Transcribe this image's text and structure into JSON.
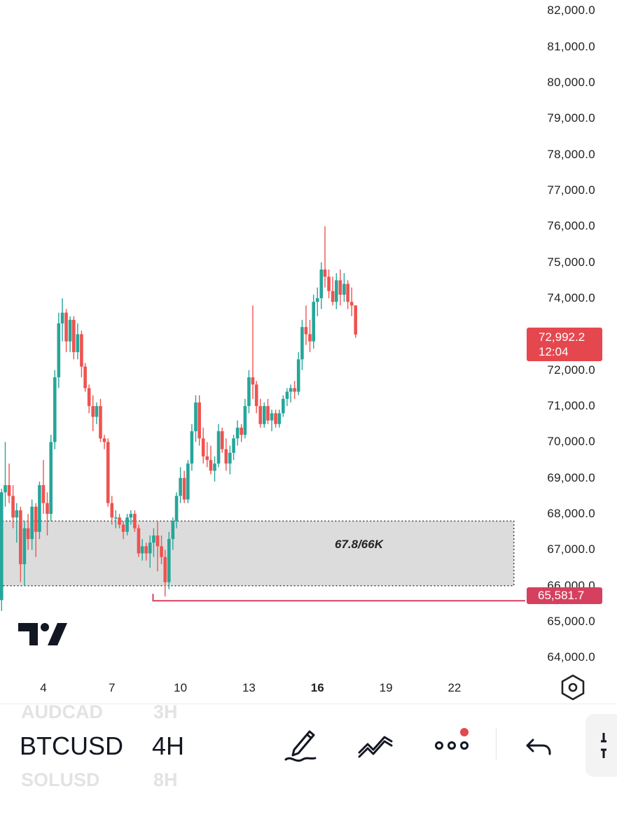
{
  "chart_data": {
    "type": "candlestick",
    "symbol": "BTCUSD",
    "timeframe": "4H",
    "y_axis": {
      "ticks": [
        "82,000.0",
        "81,000.0",
        "80,000.0",
        "79,000.0",
        "78,000.0",
        "77,000.0",
        "76,000.0",
        "75,000.0",
        "74,000.0",
        "72,000.0",
        "71,000.0",
        "70,000.0",
        "69,000.0",
        "68,000.0",
        "67,000.0",
        "66,000.0",
        "65,000.0",
        "64,000.0"
      ],
      "range": [
        63600,
        82300
      ]
    },
    "x_axis": {
      "ticks": [
        "4",
        "7",
        "10",
        "13",
        "16",
        "19",
        "22"
      ],
      "highlight": "16",
      "day_range": [
        2.1,
        25.1
      ]
    },
    "current_price": "72,992.2",
    "countdown": "12:04",
    "current_price_value": 72992.2,
    "low_price": "65,581.7",
    "low_price_value": 65581.7,
    "low_line_start_day": 8.8,
    "zone": {
      "label": "67.8/66K",
      "top": 67800,
      "bottom": 66000,
      "start_day": 2.2,
      "end_day": 24.6
    },
    "ohlc": [
      [
        2.0,
        66100,
        66300,
        65400,
        65600
      ],
      [
        2.17,
        65600,
        68700,
        65300,
        68600
      ],
      [
        2.33,
        68600,
        70000,
        68200,
        68800
      ],
      [
        2.5,
        68800,
        69400,
        68300,
        68500
      ],
      [
        2.67,
        68500,
        68800,
        67600,
        67900
      ],
      [
        2.83,
        67900,
        68300,
        67200,
        68100
      ],
      [
        3.0,
        68100,
        68200,
        66100,
        66600
      ],
      [
        3.17,
        66600,
        67800,
        66000,
        67600
      ],
      [
        3.33,
        67600,
        68000,
        67000,
        67300
      ],
      [
        3.5,
        67300,
        68400,
        67000,
        68200
      ],
      [
        3.67,
        68200,
        68300,
        66800,
        67500
      ],
      [
        3.83,
        67500,
        68900,
        67300,
        68800
      ],
      [
        4.0,
        68800,
        69500,
        68000,
        68300
      ],
      [
        4.17,
        68300,
        68600,
        67400,
        68000
      ],
      [
        4.33,
        68000,
        70200,
        67800,
        70000
      ],
      [
        4.5,
        70000,
        72000,
        69800,
        71800
      ],
      [
        4.67,
        71800,
        73600,
        71500,
        73300
      ],
      [
        4.83,
        73300,
        74000,
        72800,
        73600
      ],
      [
        5.0,
        73600,
        73700,
        72500,
        72800
      ],
      [
        5.17,
        72800,
        73500,
        72500,
        73400
      ],
      [
        5.33,
        73400,
        73500,
        72300,
        72500
      ],
      [
        5.5,
        72500,
        73300,
        72300,
        73000
      ],
      [
        5.67,
        73000,
        73100,
        71800,
        72100
      ],
      [
        5.83,
        72100,
        72200,
        71400,
        71500
      ],
      [
        6.0,
        71500,
        71600,
        70800,
        71000
      ],
      [
        6.17,
        71000,
        71300,
        70300,
        70700
      ],
      [
        6.33,
        70700,
        71100,
        70500,
        71000
      ],
      [
        6.5,
        71000,
        71200,
        70000,
        70100
      ],
      [
        6.67,
        70100,
        70200,
        69800,
        70000
      ],
      [
        6.83,
        70000,
        70100,
        68200,
        68300
      ],
      [
        7.0,
        68300,
        68500,
        67700,
        67900
      ],
      [
        7.17,
        67900,
        68100,
        67600,
        67900
      ],
      [
        7.33,
        67900,
        68000,
        67600,
        67700
      ],
      [
        7.5,
        67700,
        67800,
        67300,
        67500
      ],
      [
        7.67,
        67500,
        68000,
        67400,
        67900
      ],
      [
        7.83,
        67900,
        68100,
        67700,
        68000
      ],
      [
        8.0,
        68000,
        68100,
        67500,
        67600
      ],
      [
        8.17,
        67600,
        67700,
        66800,
        66900
      ],
      [
        8.33,
        66900,
        67300,
        66700,
        67100
      ],
      [
        8.5,
        67100,
        67200,
        66700,
        66900
      ],
      [
        8.67,
        66900,
        67400,
        66500,
        67200
      ],
      [
        8.83,
        67200,
        67600,
        66800,
        67400
      ],
      [
        9.0,
        67400,
        67800,
        66400,
        67100
      ],
      [
        9.17,
        67100,
        67400,
        66600,
        66800
      ],
      [
        9.33,
        66800,
        67000,
        65700,
        66100
      ],
      [
        9.5,
        66100,
        67500,
        65900,
        67300
      ],
      [
        9.67,
        67300,
        67900,
        67000,
        67800
      ],
      [
        9.83,
        67800,
        68600,
        67600,
        68500
      ],
      [
        10.0,
        68500,
        69300,
        68300,
        69000
      ],
      [
        10.17,
        69000,
        69200,
        68300,
        68400
      ],
      [
        10.33,
        68400,
        69500,
        68300,
        69400
      ],
      [
        10.5,
        69400,
        70500,
        69200,
        70300
      ],
      [
        10.67,
        70300,
        71300,
        70000,
        71100
      ],
      [
        10.83,
        71100,
        71300,
        69900,
        70100
      ],
      [
        11.0,
        70100,
        70400,
        69400,
        69600
      ],
      [
        11.17,
        69600,
        70000,
        69300,
        69500
      ],
      [
        11.33,
        69500,
        69900,
        69100,
        69200
      ],
      [
        11.5,
        69200,
        69600,
        68900,
        69400
      ],
      [
        11.67,
        69400,
        70500,
        69300,
        70300
      ],
      [
        11.83,
        70300,
        70400,
        69700,
        69800
      ],
      [
        12.0,
        69800,
        70100,
        69200,
        69400
      ],
      [
        12.17,
        69400,
        69900,
        69100,
        69700
      ],
      [
        12.33,
        69700,
        70200,
        69500,
        70100
      ],
      [
        12.5,
        70100,
        70600,
        69900,
        70400
      ],
      [
        12.67,
        70400,
        70500,
        70000,
        70200
      ],
      [
        12.83,
        70200,
        71200,
        70100,
        71000
      ],
      [
        13.0,
        71000,
        72000,
        70800,
        71800
      ],
      [
        13.17,
        71800,
        73800,
        71200,
        71600
      ],
      [
        13.33,
        71600,
        71700,
        70800,
        71000
      ],
      [
        13.5,
        71000,
        71200,
        70400,
        70500
      ],
      [
        13.67,
        70500,
        71100,
        70400,
        71000
      ],
      [
        13.83,
        71000,
        71200,
        70500,
        70600
      ],
      [
        14.0,
        70600,
        70900,
        70300,
        70800
      ],
      [
        14.17,
        70800,
        70900,
        70400,
        70500
      ],
      [
        14.33,
        70500,
        70900,
        70400,
        70800
      ],
      [
        14.5,
        70800,
        71300,
        70700,
        71200
      ],
      [
        14.67,
        71200,
        71500,
        71000,
        71400
      ],
      [
        14.83,
        71400,
        71600,
        71100,
        71500
      ],
      [
        15.0,
        71500,
        71700,
        71200,
        71400
      ],
      [
        15.17,
        71400,
        72500,
        71300,
        72300
      ],
      [
        15.33,
        72300,
        73400,
        72000,
        73200
      ],
      [
        15.5,
        73200,
        73800,
        72700,
        73000
      ],
      [
        15.67,
        73000,
        73400,
        72500,
        72800
      ],
      [
        15.83,
        72800,
        74100,
        72600,
        73900
      ],
      [
        16.0,
        73900,
        74300,
        73500,
        74000
      ],
      [
        16.17,
        74000,
        75000,
        73700,
        74800
      ],
      [
        16.33,
        74800,
        76000,
        74300,
        74600
      ],
      [
        16.5,
        74600,
        74800,
        74000,
        74200
      ],
      [
        16.67,
        74200,
        74600,
        73800,
        73900
      ],
      [
        16.83,
        73900,
        74700,
        73700,
        74500
      ],
      [
        17.0,
        74500,
        74800,
        73800,
        74100
      ],
      [
        17.17,
        74100,
        74700,
        73900,
        74400
      ],
      [
        17.33,
        74400,
        74500,
        73700,
        73900
      ],
      [
        17.5,
        73900,
        74300,
        73500,
        73800
      ],
      [
        17.67,
        73800,
        73800,
        72900,
        72992
      ]
    ]
  },
  "toolbar": {
    "symbols": [
      "AUDCAD",
      "BTCUSD",
      "SOLUSD"
    ],
    "timeframes": [
      "3H",
      "4H",
      "8H"
    ],
    "tools": [
      "pencil-draw-icon",
      "trend-line-icon",
      "more-dots-icon",
      "undo-icon"
    ]
  },
  "colors": {
    "up": "#26a69a",
    "down": "#ef5350",
    "zone_fill": "#dcdcdc",
    "low_line": "#d6405f",
    "current_tag": "#e5474f"
  }
}
